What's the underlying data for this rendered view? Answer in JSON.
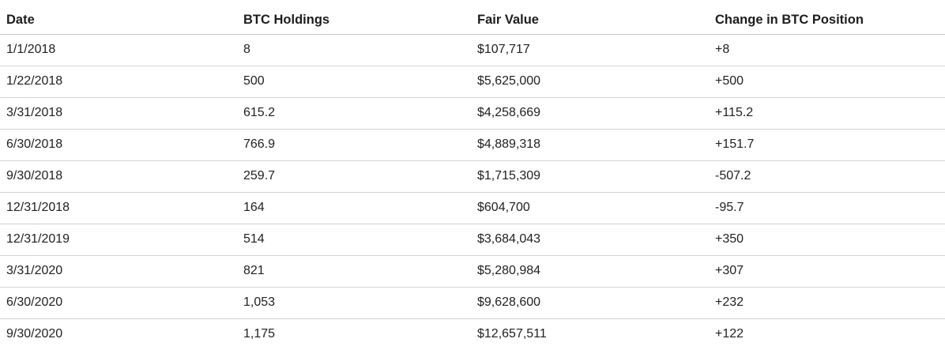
{
  "chart_data": {
    "type": "table",
    "title": "",
    "columns": [
      "Date",
      "BTC Holdings",
      "Fair Value",
      "Change in BTC Position"
    ],
    "rows": [
      [
        "1/1/2018",
        "8",
        "$107,717",
        "+8"
      ],
      [
        "1/22/2018",
        "500",
        "$5,625,000",
        "+500"
      ],
      [
        "3/31/2018",
        "615.2",
        "$4,258,669",
        "+115.2"
      ],
      [
        "6/30/2018",
        "766.9",
        "$4,889,318",
        "+151.7"
      ],
      [
        "9/30/2018",
        "259.7",
        "$1,715,309",
        "-507.2"
      ],
      [
        "12/31/2018",
        "164",
        "$604,700",
        "-95.7"
      ],
      [
        "12/31/2019",
        "514",
        "$3,684,043",
        "+350"
      ],
      [
        "3/31/2020",
        "821",
        "$5,280,984",
        "+307"
      ],
      [
        "6/30/2020",
        "1,053",
        "$9,628,600",
        "+232"
      ],
      [
        "9/30/2020",
        "1,175",
        "$12,657,511",
        "+122"
      ]
    ]
  },
  "colors": {
    "background": "#ffffff",
    "text": "#212121",
    "header_text": "#1d1d1d",
    "header_border": "#c6c6c6",
    "row_border": "#d2d2d2"
  }
}
